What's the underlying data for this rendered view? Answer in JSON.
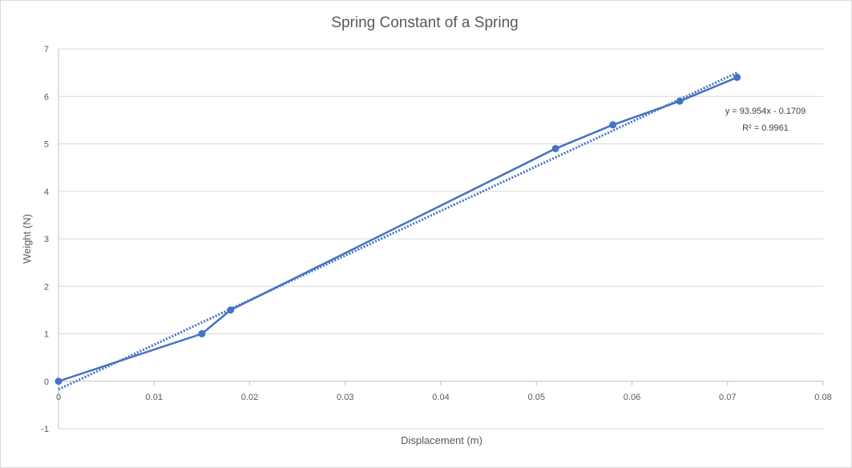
{
  "chart_data": {
    "type": "scatter",
    "title": "Spring Constant of a Spring",
    "xlabel": "Displacement (m)",
    "ylabel": "Weight (N)",
    "xlim": [
      0,
      0.08
    ],
    "ylim": [
      -1,
      7
    ],
    "x_ticks": [
      "0",
      "0.01",
      "0.02",
      "0.03",
      "0.04",
      "0.05",
      "0.06",
      "0.07",
      "0.08"
    ],
    "y_ticks": [
      "-1",
      "0",
      "1",
      "2",
      "3",
      "4",
      "5",
      "6",
      "7"
    ],
    "grid": true,
    "series": [
      {
        "x": [
          0,
          0.015,
          0.018,
          0.052,
          0.058,
          0.065,
          0.071
        ],
        "y": [
          0,
          1.0,
          1.5,
          4.9,
          5.4,
          5.9,
          6.4
        ],
        "color": "#4472C4",
        "style": "line-with-markers"
      }
    ],
    "trendline": {
      "type": "linear",
      "slope": 93.954,
      "intercept": -0.1709,
      "x_range": [
        0,
        0.071
      ],
      "color": "#4472C4",
      "style": "dotted",
      "equation_text": "y = 93.954x - 0.1709",
      "r2_text": "R² = 0.9961"
    }
  }
}
